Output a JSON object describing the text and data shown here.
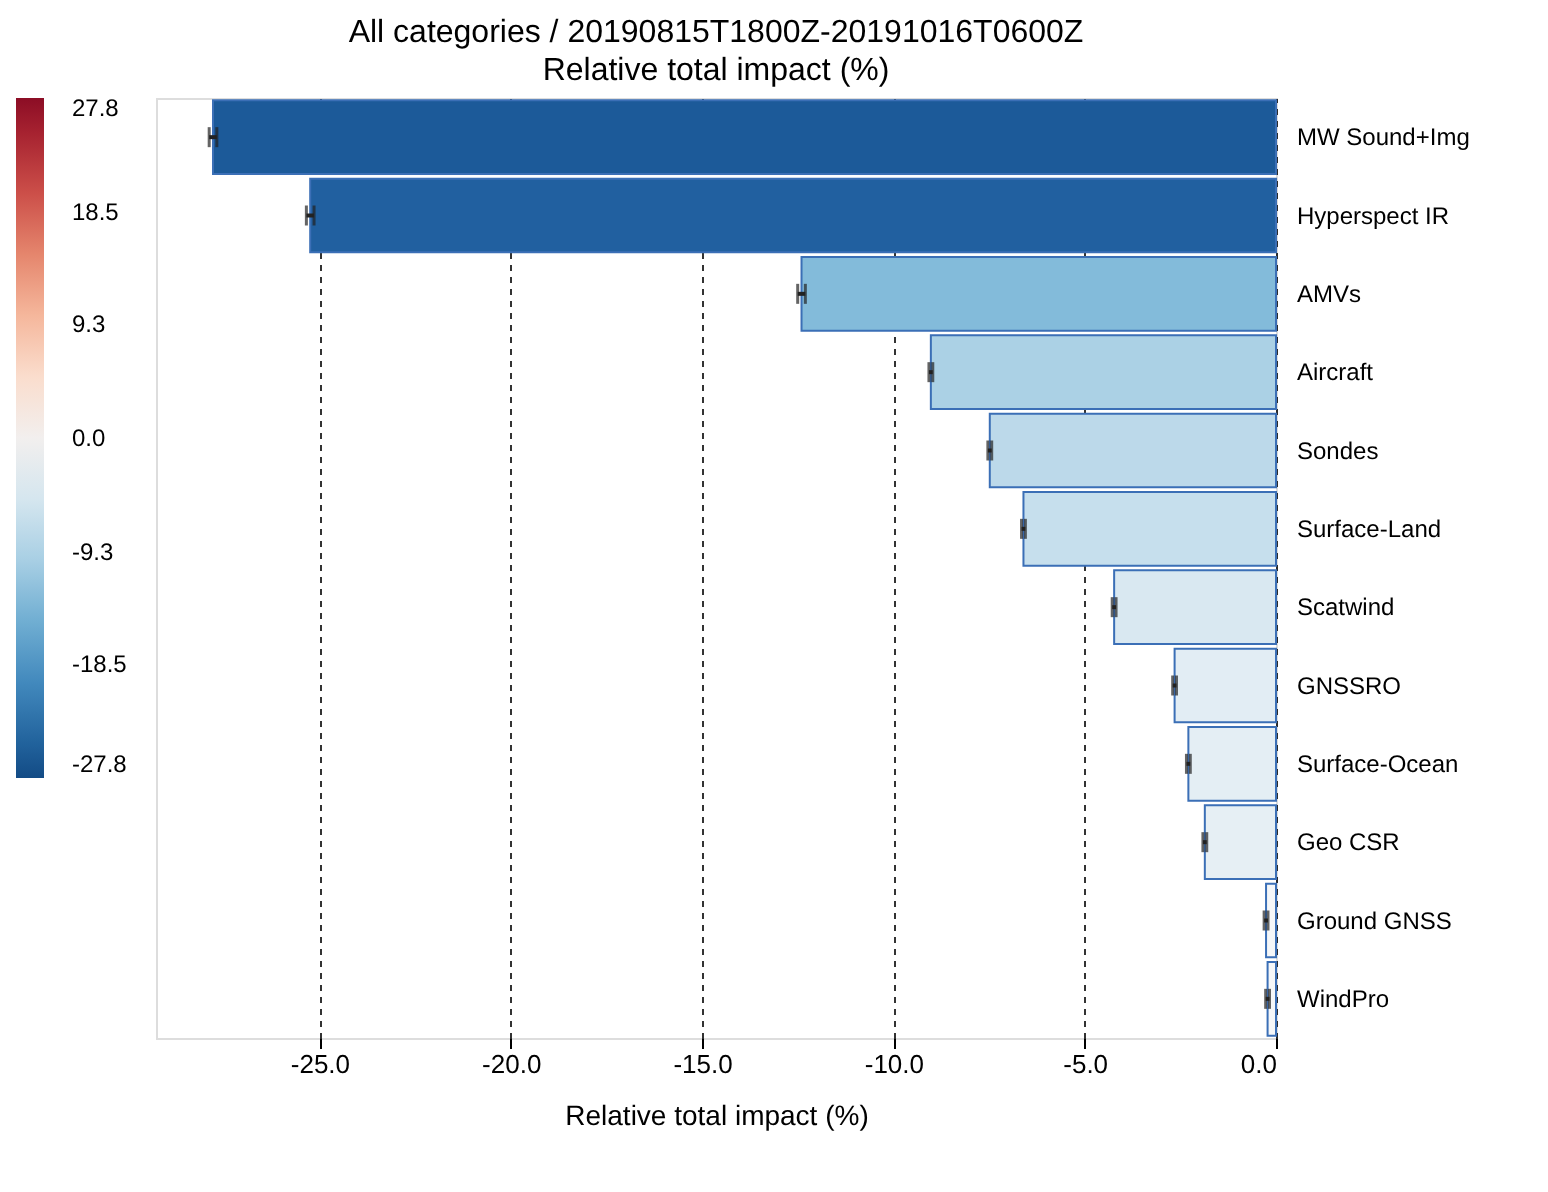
{
  "chart_data": {
    "type": "bar",
    "orientation": "horizontal",
    "title": "All categories / 20190815T1800Z-20191016T0600Z",
    "subtitle": "Relative total impact (%)",
    "xlabel": "Relative total impact (%)",
    "categories": [
      "MW Sound+Img",
      "Hyperspect IR",
      "AMVs",
      "Aircraft",
      "Sondes",
      "Surface-Land",
      "Scatwind",
      "GNSSRO",
      "Surface-Ocean",
      "Geo CSR",
      "Ground GNSS",
      "WindPro"
    ],
    "values": [
      -27.78,
      -25.24,
      -12.4,
      -9.02,
      -7.48,
      -6.6,
      -4.23,
      -2.65,
      -2.29,
      -1.86,
      -0.26,
      -0.22
    ],
    "errors": [
      0.1,
      0.1,
      0.1,
      0.05,
      0.05,
      0.05,
      0.05,
      0.05,
      0.05,
      0.05,
      0.05,
      0.05
    ],
    "colors": [
      "#1c5a99",
      "#2160a0",
      "#83bbda",
      "#abd1e5",
      "#bcd9ea",
      "#c6dfed",
      "#d9e8f1",
      "#e2edf4",
      "#e4eef4",
      "#e6eff4",
      "#f5f7f9",
      "#f5f7f9"
    ],
    "xlim": [
      -29.27,
      0
    ],
    "xticks": [
      {
        "value": -25,
        "label": "-25.0"
      },
      {
        "value": -20,
        "label": "-20.0"
      },
      {
        "value": -15,
        "label": "-15.0"
      },
      {
        "value": -10,
        "label": "-10.0"
      },
      {
        "value": -5,
        "label": "-5.0"
      },
      {
        "value": 0,
        "label": "0.0"
      }
    ],
    "clim": [
      -27.8,
      27.8
    ],
    "cticks": [
      27.8,
      18.5,
      9.3,
      {
        "value": 0,
        "label": "0.0"
      },
      -9.3,
      -18.5,
      -27.8
    ],
    "grid": "x"
  }
}
